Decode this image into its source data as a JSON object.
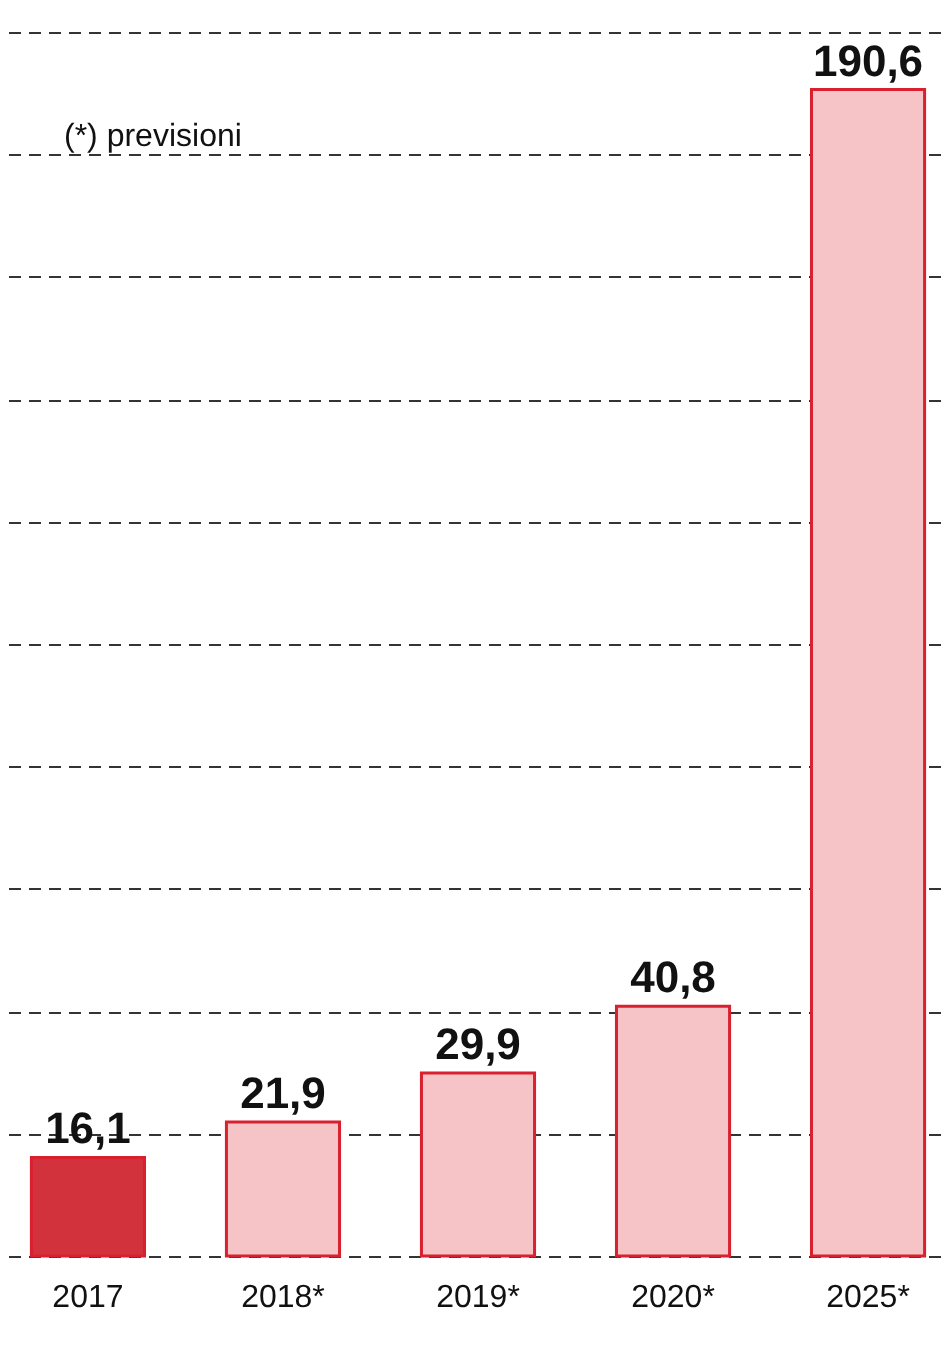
{
  "chart_data": {
    "type": "bar",
    "categories": [
      "2017",
      "2018*",
      "2019*",
      "2020*",
      "2025*"
    ],
    "values": [
      16.1,
      21.9,
      29.9,
      40.8,
      190.6
    ],
    "value_labels": [
      "16,1",
      "21,9",
      "29,9",
      "40,8",
      "190,6"
    ],
    "colors": [
      "#d2323c",
      "#f6c4c7",
      "#f6c4c7",
      "#f6c4c7",
      "#f6c4c7"
    ],
    "ylim": [
      0,
      200
    ],
    "yticks": [
      {
        "value": 0,
        "label": null
      },
      {
        "value": 20,
        "label": null
      },
      {
        "value": 40,
        "label": null
      },
      {
        "value": 60,
        "label": null
      },
      {
        "value": 80,
        "label": null
      },
      {
        "value": 100,
        "label": null
      },
      {
        "value": 120,
        "label": null
      },
      {
        "value": 140,
        "label": null
      },
      {
        "value": 160,
        "label": null
      },
      {
        "value": 180,
        "label": null
      },
      {
        "value": 200,
        "label": null
      }
    ],
    "grid": "y",
    "line_style": "dashed",
    "tick_labels": "x",
    "annotations": [
      "(*) previsioni"
    ]
  }
}
